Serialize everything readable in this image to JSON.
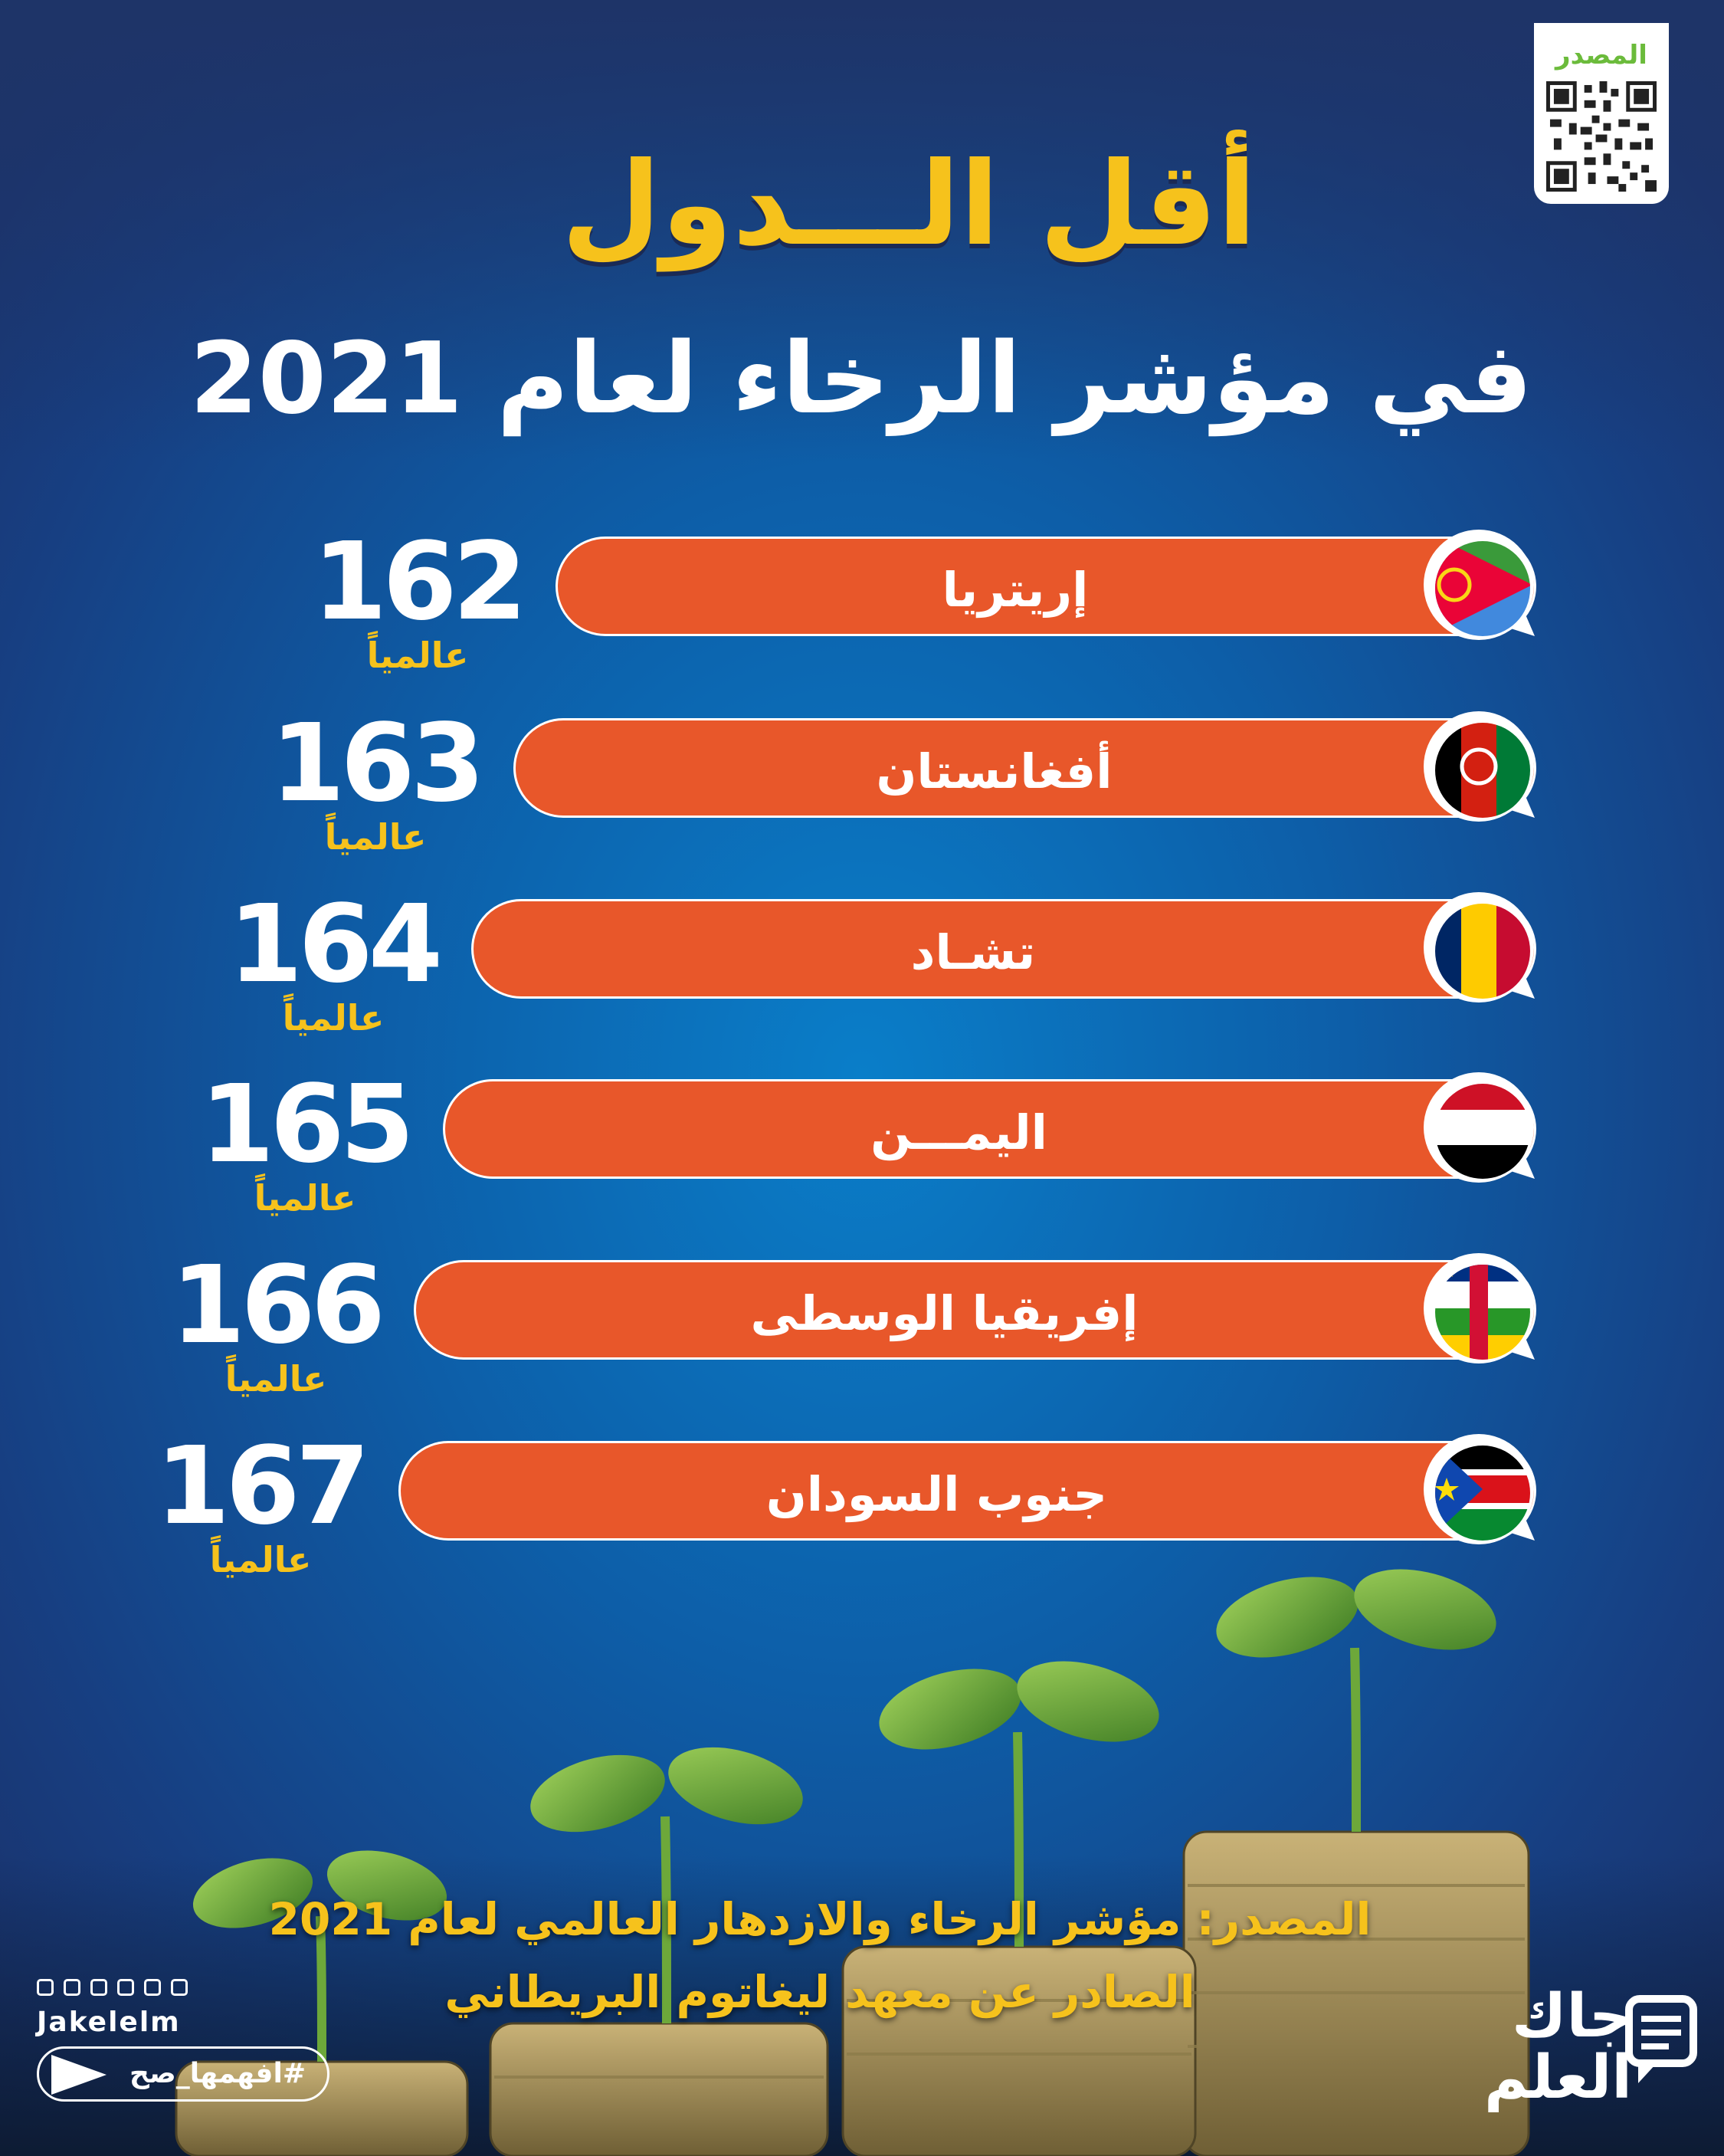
{
  "source_box": {
    "label": "المصدر"
  },
  "title": {
    "main": "أقل الـــدول",
    "sub": "في مؤشر الرخاء لعام 2021"
  },
  "rankings": [
    {
      "country": "إريتريا",
      "rank": "162",
      "unit": "عالمياً",
      "flag": "eritrea-flag-icon"
    },
    {
      "country": "أفغانستان",
      "rank": "163",
      "unit": "عالمياً",
      "flag": "afghanistan-flag-icon"
    },
    {
      "country": "تشـاد",
      "rank": "164",
      "unit": "عالمياً",
      "flag": "chad-flag-icon"
    },
    {
      "country": "اليمـــن",
      "rank": "165",
      "unit": "عالمياً",
      "flag": "yemen-flag-icon"
    },
    {
      "country": "إفريقيا الوسطى",
      "rank": "166",
      "unit": "عالمياً",
      "flag": "central-african-republic-flag-icon"
    },
    {
      "country": "جنوب السودان",
      "rank": "167",
      "unit": "عالمياً",
      "flag": "south-sudan-flag-icon"
    }
  ],
  "source": {
    "line1": "المصدر: مؤشر الرخاء والازدهار العالمي لعام 2021",
    "line2": "الصادر عن معهد ليغاتوم البريطاني"
  },
  "footer": {
    "handle": "Jakelelm",
    "hashtag": "#افهمها_صح",
    "logo_line1": "جاك",
    "logo_line2": "العلم"
  },
  "colors": {
    "accent_yellow": "#f6c21c",
    "pill_orange": "#e8572a",
    "qr_green": "#6bbb3b"
  }
}
